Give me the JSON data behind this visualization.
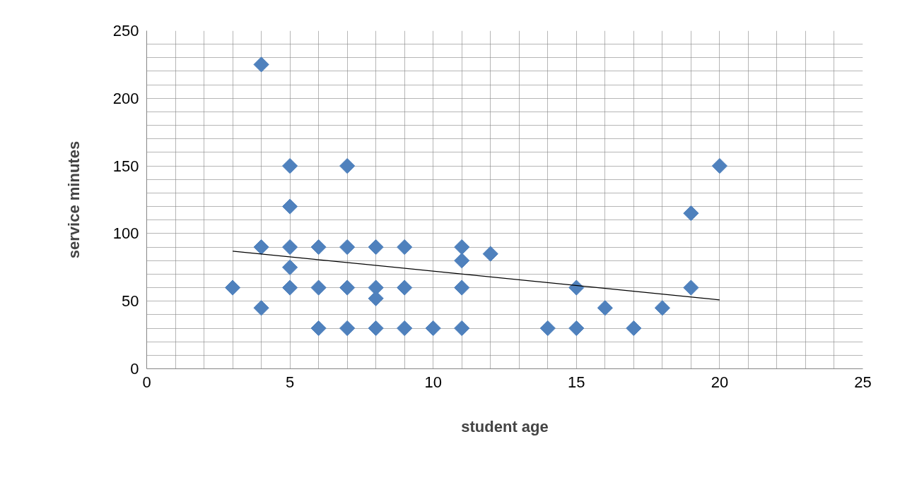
{
  "chart_data": {
    "type": "scatter",
    "xlabel": "student age",
    "ylabel": "service minutes",
    "grid": true,
    "xlim": [
      0,
      25
    ],
    "ylim": [
      0,
      250
    ],
    "xticks": [
      0,
      {
        "value": 1,
        "label": null
      },
      {
        "value": 2,
        "label": null
      },
      {
        "value": 3,
        "label": null
      },
      {
        "value": 4,
        "label": null
      },
      5,
      {
        "value": 6,
        "label": null
      },
      {
        "value": 7,
        "label": null
      },
      {
        "value": 8,
        "label": null
      },
      {
        "value": 9,
        "label": null
      },
      10,
      {
        "value": 11,
        "label": null
      },
      {
        "value": 12,
        "label": null
      },
      {
        "value": 13,
        "label": null
      },
      {
        "value": 14,
        "label": null
      },
      15,
      {
        "value": 16,
        "label": null
      },
      {
        "value": 17,
        "label": null
      },
      {
        "value": 18,
        "label": null
      },
      {
        "value": 19,
        "label": null
      },
      20,
      {
        "value": 21,
        "label": null
      },
      {
        "value": 22,
        "label": null
      },
      {
        "value": 23,
        "label": null
      },
      {
        "value": 24,
        "label": null
      },
      25
    ],
    "yticks": [
      0,
      {
        "value": 10,
        "label": null
      },
      {
        "value": 20,
        "label": null
      },
      {
        "value": 30,
        "label": null
      },
      {
        "value": 40,
        "label": null
      },
      50,
      {
        "value": 60,
        "label": null
      },
      {
        "value": 70,
        "label": null
      },
      {
        "value": 80,
        "label": null
      },
      {
        "value": 90,
        "label": null
      },
      100,
      {
        "value": 110,
        "label": null
      },
      {
        "value": 120,
        "label": null
      },
      {
        "value": 130,
        "label": null
      },
      {
        "value": 140,
        "label": null
      },
      150,
      {
        "value": 160,
        "label": null
      },
      {
        "value": 170,
        "label": null
      },
      {
        "value": 180,
        "label": null
      },
      {
        "value": 190,
        "label": null
      },
      200,
      {
        "value": 210,
        "label": null
      },
      {
        "value": 220,
        "label": null
      },
      {
        "value": 230,
        "label": null
      },
      {
        "value": 240,
        "label": null
      },
      250
    ],
    "series": [
      {
        "marker": "diamond",
        "color": "#4f81bd",
        "x": [
          3,
          4,
          4,
          4,
          5,
          5,
          5,
          5,
          5,
          6,
          6,
          6,
          7,
          7,
          7,
          7,
          8,
          8,
          8,
          8,
          9,
          9,
          9,
          10,
          11,
          11,
          11,
          11,
          12,
          14,
          15,
          15,
          16,
          17,
          18,
          19,
          19,
          20
        ],
        "values": [
          60,
          225,
          90,
          45,
          150,
          120,
          90,
          75,
          60,
          90,
          60,
          30,
          150,
          90,
          60,
          30,
          90,
          60,
          52,
          30,
          90,
          60,
          30,
          30,
          90,
          80,
          60,
          30,
          85,
          30,
          60,
          30,
          45,
          30,
          45,
          115,
          60,
          150
        ]
      },
      {
        "type": "line",
        "marker": "none",
        "color": "#000000",
        "x": [
          3,
          20
        ],
        "values": [
          87,
          51
        ]
      }
    ]
  }
}
